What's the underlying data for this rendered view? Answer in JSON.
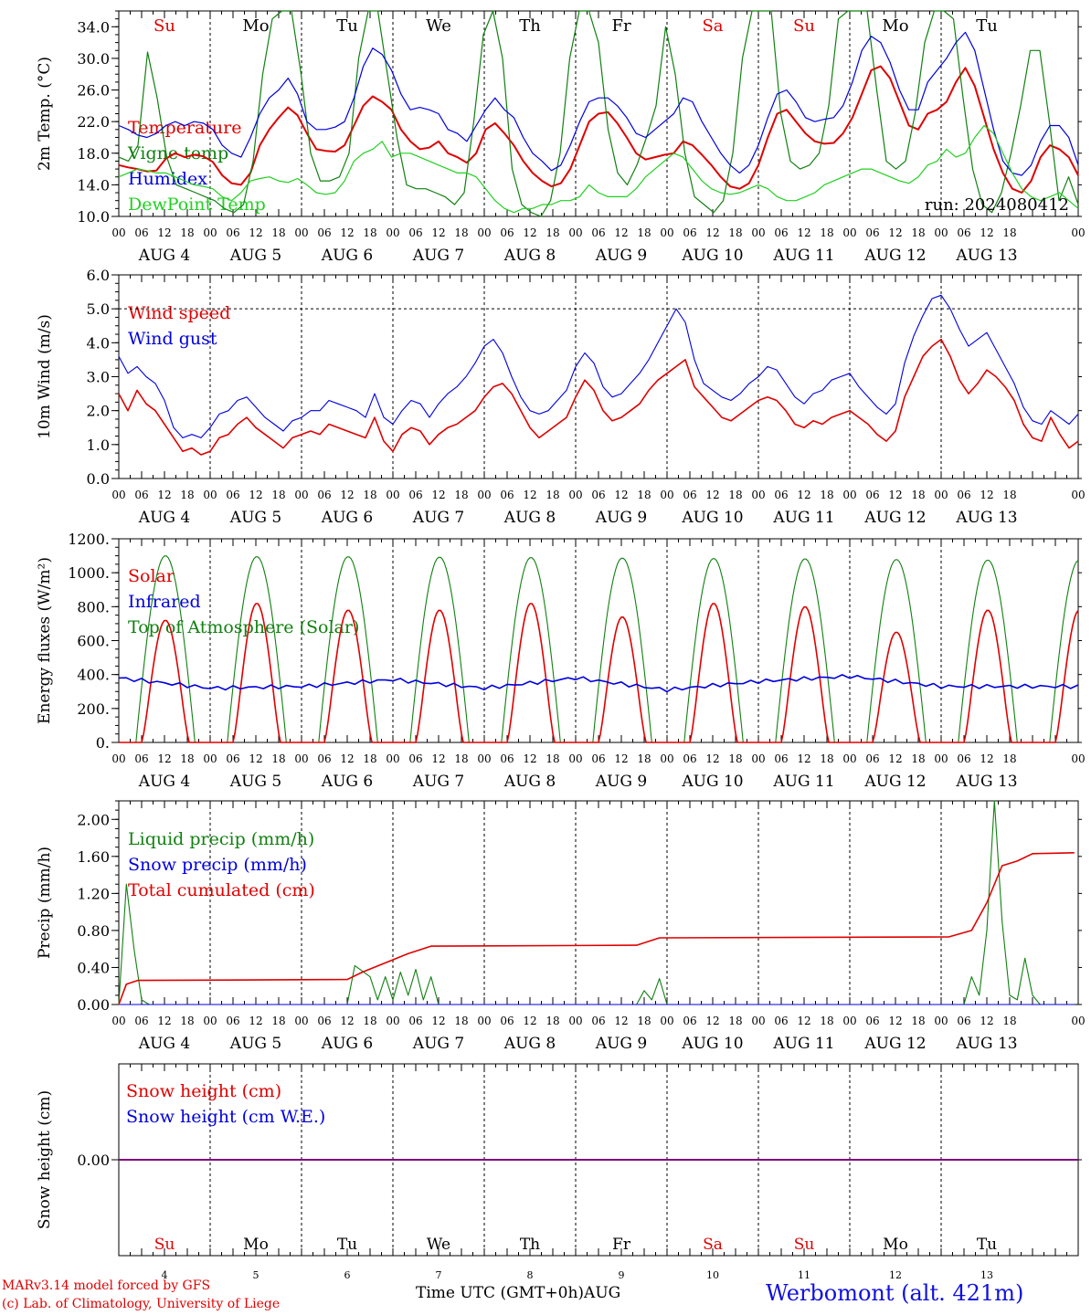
{
  "colors": {
    "red": "#e00000",
    "darkgreen": "#108010",
    "blue": "#0000e0",
    "lightgreen": "#20d020",
    "purple": "#800080"
  },
  "days": {
    "numbers": [
      "4",
      "5",
      "6",
      "7",
      "8",
      "9",
      "10",
      "11",
      "12",
      "13"
    ],
    "month": "AUG",
    "weekdays_top": [
      "Su",
      "Mo",
      "Tu",
      "We",
      "Th",
      "Fr",
      "Sa",
      "Su",
      "Mo",
      "Tu"
    ],
    "weekday_colors": [
      "red",
      "black",
      "black",
      "black",
      "black",
      "black",
      "red",
      "red",
      "black",
      "black"
    ],
    "hour_ticks": [
      "00",
      "06",
      "12",
      "18"
    ]
  },
  "footer": {
    "credit_line1": "MARv3.14 model forced by GFS",
    "credit_line2": "(c) Lab. of Climatology, University of Liege",
    "xlabel": "Time UTC (GMT+0h)",
    "xlabel_month": "AUG",
    "station": "Werbomont (alt. 421m)"
  },
  "chart_data": [
    {
      "type": "line",
      "ylabel": "2m Temp. (°C)",
      "ylim": [
        10,
        36
      ],
      "yticks": [
        "10.0",
        "14.0",
        "18.0",
        "22.0",
        "26.0",
        "30.0",
        "34.0"
      ],
      "annotation": "run: 2024080412",
      "legend": [
        "Temperature",
        "Vigne temp",
        "Humidex",
        "DewPoint Temp"
      ],
      "series": [
        {
          "name": "Temperature",
          "color": "red",
          "values": [
            16.5,
            16.2,
            16,
            15.7,
            15.8,
            17.3,
            18,
            17.5,
            17.8,
            17.6,
            16.9,
            15.2,
            14.2,
            14,
            15.5,
            19,
            21,
            22.5,
            23.8,
            22.8,
            20.5,
            18.5,
            18.3,
            18.2,
            19,
            21.5,
            24,
            25.2,
            24.5,
            23.5,
            21,
            19.5,
            18.5,
            18.7,
            19.5,
            18,
            17.5,
            16.8,
            18,
            21,
            21.8,
            20.5,
            19,
            17,
            15.5,
            14.5,
            13.8,
            14.2,
            16,
            19,
            22,
            23,
            23.2,
            21.8,
            20,
            18,
            17.2,
            17.5,
            17.8,
            18,
            19.5,
            19,
            17.8,
            16.5,
            15,
            13.8,
            13.5,
            14.2,
            16.5,
            20,
            23,
            23.5,
            22,
            20.5,
            19.5,
            19.2,
            19.3,
            20.5,
            22.5,
            25.5,
            28.5,
            29,
            27.5,
            24.5,
            21.5,
            21,
            23,
            23.5,
            24.5,
            27,
            28.8,
            26.5,
            22.5,
            18.5,
            15.5,
            13.5,
            13,
            14.5,
            17.5,
            19,
            18.5,
            17.5,
            15.2
          ]
        },
        {
          "name": "Vigne temp",
          "color": "darkgreen",
          "values": [
            17.5,
            17,
            19,
            30.8,
            25,
            17.5,
            14,
            13.5,
            13,
            12.5,
            12,
            11,
            10.5,
            11.5,
            17,
            28,
            35,
            38,
            36,
            28,
            18,
            14.5,
            14.5,
            15,
            18,
            30,
            40,
            36,
            28,
            20,
            14,
            13.5,
            13.5,
            13,
            12.5,
            11.5,
            13,
            22,
            33,
            38,
            30,
            16,
            11.5,
            10.5,
            9.5,
            12,
            18,
            30,
            38,
            39,
            32,
            21,
            15.5,
            14,
            16.5,
            20,
            24,
            34,
            28,
            18,
            12.5,
            11.5,
            10.5,
            12,
            18,
            30,
            40,
            42,
            36,
            23,
            17,
            16,
            16.5,
            18,
            24,
            35,
            40,
            42,
            38,
            26,
            17,
            16,
            17,
            23,
            32,
            36,
            38,
            35,
            25,
            16,
            11.5,
            10.5,
            13,
            18,
            24,
            31,
            31,
            22,
            12,
            15,
            11.5
          ]
        },
        {
          "name": "Humidex",
          "color": "blue",
          "values": [
            21.5,
            21,
            20.3,
            20,
            20.5,
            21.5,
            22,
            21.5,
            22,
            21.8,
            21,
            19,
            18,
            17.5,
            20,
            23,
            25,
            26,
            27.5,
            25.5,
            22,
            21,
            21,
            21.3,
            22,
            25,
            29,
            31.3,
            30.5,
            28.5,
            25.5,
            23.5,
            23.8,
            23.5,
            23,
            21,
            20.5,
            19.5,
            21.5,
            23.5,
            25,
            23.5,
            22.5,
            20,
            18,
            17,
            15.8,
            16.5,
            19,
            22,
            24.5,
            25,
            25,
            24,
            22.5,
            20.5,
            20,
            21,
            22,
            23,
            25,
            24.5,
            22,
            20,
            18,
            16.5,
            15.5,
            16.5,
            19,
            22.5,
            25.5,
            26,
            24.5,
            22.5,
            22,
            22.3,
            22.5,
            24,
            27,
            31,
            32.8,
            32,
            29.5,
            26,
            23.5,
            23.5,
            27,
            28.5,
            30,
            32,
            33.3,
            31,
            26,
            21,
            17,
            15.5,
            15.2,
            16.5,
            19.5,
            21.5,
            21.5,
            20,
            16.5
          ]
        },
        {
          "name": "DewPoint Temp",
          "color": "lightgreen",
          "values": [
            15,
            15.5,
            16,
            15.8,
            15.5,
            15.5,
            15,
            14.5,
            14,
            13.8,
            13.5,
            12.5,
            12,
            13,
            14.5,
            14.8,
            15,
            14.5,
            14.3,
            14.8,
            14,
            13,
            12.8,
            13,
            14.5,
            17,
            18,
            18.5,
            19.5,
            17.5,
            18,
            18,
            17.5,
            17,
            16.5,
            16,
            15.5,
            15.5,
            15,
            13.5,
            12,
            11,
            10.5,
            11,
            11,
            11.5,
            11.5,
            12,
            12,
            12.5,
            14,
            13,
            12.5,
            12.5,
            12.5,
            13.5,
            15,
            16,
            17,
            18,
            17.5,
            16,
            14.5,
            13.5,
            13,
            12.8,
            13,
            13.5,
            14,
            13.5,
            12.5,
            12,
            12,
            12.5,
            13,
            14,
            14.5,
            15,
            15.5,
            16,
            16,
            15.5,
            15,
            14.5,
            14.2,
            15,
            16.5,
            17,
            18.5,
            17.5,
            18,
            20,
            21.5,
            20.5,
            18,
            15.5,
            13.5,
            12.5,
            12,
            12.5,
            13,
            12,
            11
          ]
        }
      ]
    },
    {
      "type": "line",
      "ylabel": "10m Wind (m/s)",
      "ylim": [
        0,
        6
      ],
      "yticks": [
        "0.0",
        "1.0",
        "2.0",
        "3.0",
        "4.0",
        "5.0",
        "6.0"
      ],
      "refline": 5.0,
      "legend": [
        "Wind speed",
        "Wind gust"
      ],
      "series": [
        {
          "name": "Wind speed",
          "color": "red",
          "values": [
            2.5,
            2,
            2.6,
            2.2,
            2,
            1.6,
            1.2,
            0.8,
            0.9,
            0.7,
            0.8,
            1.2,
            1.3,
            1.6,
            1.8,
            1.5,
            1.3,
            1.1,
            0.9,
            1.2,
            1.3,
            1.4,
            1.3,
            1.6,
            1.5,
            1.4,
            1.3,
            1.2,
            1.8,
            1.1,
            0.8,
            1.3,
            1.5,
            1.4,
            1,
            1.3,
            1.5,
            1.6,
            1.8,
            2,
            2.4,
            2.7,
            2.8,
            2.5,
            2,
            1.5,
            1.2,
            1.4,
            1.6,
            1.8,
            2.4,
            2.9,
            2.6,
            2,
            1.7,
            1.8,
            2,
            2.2,
            2.6,
            2.9,
            3.1,
            3.3,
            3.5,
            2.7,
            2.4,
            2.1,
            1.8,
            1.7,
            1.9,
            2.1,
            2.3,
            2.4,
            2.3,
            2,
            1.6,
            1.5,
            1.7,
            1.6,
            1.8,
            1.9,
            2,
            1.8,
            1.6,
            1.3,
            1.1,
            1.4,
            2.4,
            3,
            3.6,
            3.9,
            4.1,
            3.6,
            2.9,
            2.5,
            2.8,
            3.2,
            3,
            2.7,
            2.3,
            1.6,
            1.2,
            1.1,
            1.8,
            1.3,
            0.9,
            1.1
          ]
        },
        {
          "name": "Wind gust",
          "color": "blue",
          "values": [
            3.6,
            3.1,
            3.3,
            3,
            2.8,
            2.3,
            1.5,
            1.2,
            1.3,
            1.2,
            1.5,
            1.9,
            2,
            2.3,
            2.4,
            2.1,
            1.8,
            1.6,
            1.4,
            1.7,
            1.8,
            2,
            2,
            2.3,
            2.2,
            2.1,
            2,
            1.8,
            2.5,
            1.8,
            1.6,
            2,
            2.3,
            2.2,
            1.8,
            2.2,
            2.5,
            2.7,
            3,
            3.4,
            3.9,
            4.1,
            3.7,
            3,
            2.4,
            2,
            1.9,
            2,
            2.3,
            2.6,
            3.3,
            3.7,
            3.4,
            2.7,
            2.4,
            2.5,
            2.8,
            3.1,
            3.5,
            4,
            4.5,
            5,
            4.6,
            3.5,
            2.8,
            2.6,
            2.4,
            2.3,
            2.5,
            2.8,
            3,
            3.3,
            3.2,
            2.8,
            2.4,
            2.2,
            2.5,
            2.6,
            2.9,
            3,
            3.1,
            2.7,
            2.4,
            2.1,
            1.9,
            2.2,
            3.4,
            4.2,
            4.8,
            5.3,
            5.4,
            5,
            4.4,
            3.9,
            4.1,
            4.3,
            3.8,
            3.3,
            2.8,
            2.1,
            1.7,
            1.6,
            2,
            1.8,
            1.6,
            1.9
          ]
        }
      ]
    },
    {
      "type": "line",
      "ylabel": "Energy fluxes (W/m²)",
      "ylim": [
        0,
        1200
      ],
      "yticks": [
        "0.",
        "200.",
        "400.",
        "600.",
        "800.",
        "1000.",
        "1200."
      ],
      "legend": [
        "Solar",
        "Infrared",
        "Top of Atmosphere (Solar)"
      ],
      "sun": {
        "start_hour": 4.5,
        "end_hour": 20,
        "toa_peaks": [
          1100,
          1095,
          1095,
          1092,
          1090,
          1087,
          1084,
          1082,
          1078,
          1075
        ]
      },
      "series": [
        {
          "name": "Solar",
          "color": "red",
          "peaks": [
            720,
            820,
            780,
            780,
            820,
            740,
            820,
            800,
            650,
            780
          ]
        },
        {
          "name": "Infrared",
          "color": "blue",
          "base": [
            380,
            320,
            330,
            370,
            320,
            380,
            310,
            360,
            390,
            330
          ]
        },
        {
          "name": "Top of Atmosphere (Solar)",
          "color": "darkgreen",
          "peaks": [
            1100,
            1095,
            1095,
            1092,
            1090,
            1087,
            1084,
            1082,
            1078,
            1075
          ]
        }
      ]
    },
    {
      "type": "line",
      "ylabel": "Precip (mm/h)",
      "ylim": [
        0,
        2.2
      ],
      "yticks": [
        "0.00",
        "0.40",
        "0.80",
        "1.20",
        "1.60",
        "2.00"
      ],
      "legend": [
        "Liquid precip (mm/h)",
        "Snow precip (mm/h)",
        "Total cumulated (cm)"
      ],
      "series": [
        {
          "name": "Liquid precip (mm/h)",
          "color": "darkgreen",
          "points": [
            [
              0,
              0
            ],
            [
              2,
              1.3
            ],
            [
              4,
              0.6
            ],
            [
              6,
              0.05
            ],
            [
              8,
              0
            ],
            [
              60,
              0
            ],
            [
              62,
              0.42
            ],
            [
              66,
              0.3
            ],
            [
              68,
              0.05
            ],
            [
              70,
              0.3
            ],
            [
              72,
              0.05
            ],
            [
              74,
              0.35
            ],
            [
              76,
              0.1
            ],
            [
              78,
              0.38
            ],
            [
              80,
              0.05
            ],
            [
              82,
              0.3
            ],
            [
              84,
              0
            ],
            [
              136,
              0
            ],
            [
              138,
              0.15
            ],
            [
              140,
              0.05
            ],
            [
              142,
              0.28
            ],
            [
              144,
              0
            ],
            [
              222,
              0
            ],
            [
              224,
              0.3
            ],
            [
              226,
              0.1
            ],
            [
              228,
              0.8
            ],
            [
              230,
              2.2
            ],
            [
              232,
              0.9
            ],
            [
              234,
              0.1
            ],
            [
              236,
              0.05
            ],
            [
              238,
              0.5
            ],
            [
              240,
              0.1
            ],
            [
              242,
              0
            ],
            [
              251,
              0
            ]
          ]
        },
        {
          "name": "Snow precip (mm/h)",
          "color": "blue",
          "points": [
            [
              0,
              0
            ],
            [
              251,
              0
            ]
          ]
        },
        {
          "name": "Total cumulated (cm)",
          "color": "red",
          "points": [
            [
              0,
              0
            ],
            [
              2,
              0.22
            ],
            [
              5,
              0.26
            ],
            [
              60,
              0.27
            ],
            [
              64,
              0.35
            ],
            [
              70,
              0.45
            ],
            [
              76,
              0.55
            ],
            [
              82,
              0.63
            ],
            [
              136,
              0.64
            ],
            [
              142,
              0.72
            ],
            [
              218,
              0.73
            ],
            [
              224,
              0.8
            ],
            [
              228,
              1.1
            ],
            [
              232,
              1.5
            ],
            [
              236,
              1.55
            ],
            [
              240,
              1.63
            ],
            [
              251,
              1.64
            ]
          ]
        }
      ]
    },
    {
      "type": "line",
      "ylabel": "Snow height (cm)",
      "ylim": [
        -1,
        1
      ],
      "yticks": [
        "0.00"
      ],
      "legend": [
        "Snow height (cm)",
        "Snow height (cm W.E.)"
      ],
      "weekdays": [
        "Su",
        "Mo",
        "Tu",
        "We",
        "Th",
        "Fr",
        "Sa",
        "Su",
        "Mo",
        "Tu"
      ],
      "series": [
        {
          "name": "Snow height (cm)",
          "color": "red",
          "values": [
            0,
            0
          ]
        },
        {
          "name": "Snow height (cm W.E.)",
          "color": "blue",
          "values": [
            0,
            0
          ]
        }
      ]
    }
  ]
}
